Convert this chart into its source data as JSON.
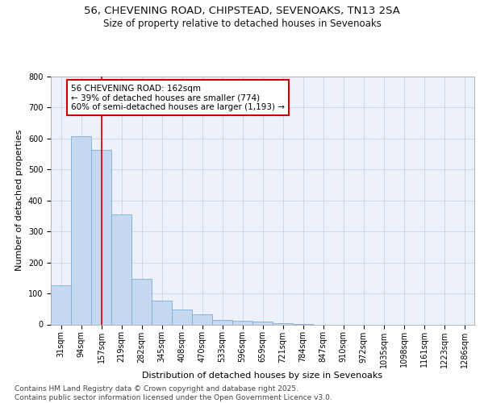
{
  "title_line1": "56, CHEVENING ROAD, CHIPSTEAD, SEVENOAKS, TN13 2SA",
  "title_line2": "Size of property relative to detached houses in Sevenoaks",
  "xlabel": "Distribution of detached houses by size in Sevenoaks",
  "ylabel": "Number of detached properties",
  "bar_color": "#c5d8f0",
  "bar_edge_color": "#7aaed6",
  "grid_color": "#c8d4e8",
  "bg_color": "#edf2fa",
  "categories": [
    "31sqm",
    "94sqm",
    "157sqm",
    "219sqm",
    "282sqm",
    "345sqm",
    "408sqm",
    "470sqm",
    "533sqm",
    "596sqm",
    "659sqm",
    "721sqm",
    "784sqm",
    "847sqm",
    "910sqm",
    "972sqm",
    "1035sqm",
    "1098sqm",
    "1161sqm",
    "1223sqm",
    "1286sqm"
  ],
  "values": [
    127,
    608,
    562,
    355,
    148,
    77,
    47,
    32,
    14,
    11,
    10,
    4,
    1,
    0,
    0,
    0,
    0,
    0,
    0,
    0,
    0
  ],
  "red_line_index": 2,
  "red_line_color": "#cc0000",
  "annotation_line1": "56 CHEVENING ROAD: 162sqm",
  "annotation_line2": "← 39% of detached houses are smaller (774)",
  "annotation_line3": "60% of semi-detached houses are larger (1,193) →",
  "annotation_box_color": "#ffffff",
  "annotation_box_edge": "#cc0000",
  "ylim": [
    0,
    800
  ],
  "yticks": [
    0,
    100,
    200,
    300,
    400,
    500,
    600,
    700,
    800
  ],
  "footnote": "Contains HM Land Registry data © Crown copyright and database right 2025.\nContains public sector information licensed under the Open Government Licence v3.0.",
  "title_fontsize": 9.5,
  "subtitle_fontsize": 8.5,
  "axis_label_fontsize": 8,
  "tick_fontsize": 7,
  "annotation_fontsize": 7.5,
  "footnote_fontsize": 6.5
}
